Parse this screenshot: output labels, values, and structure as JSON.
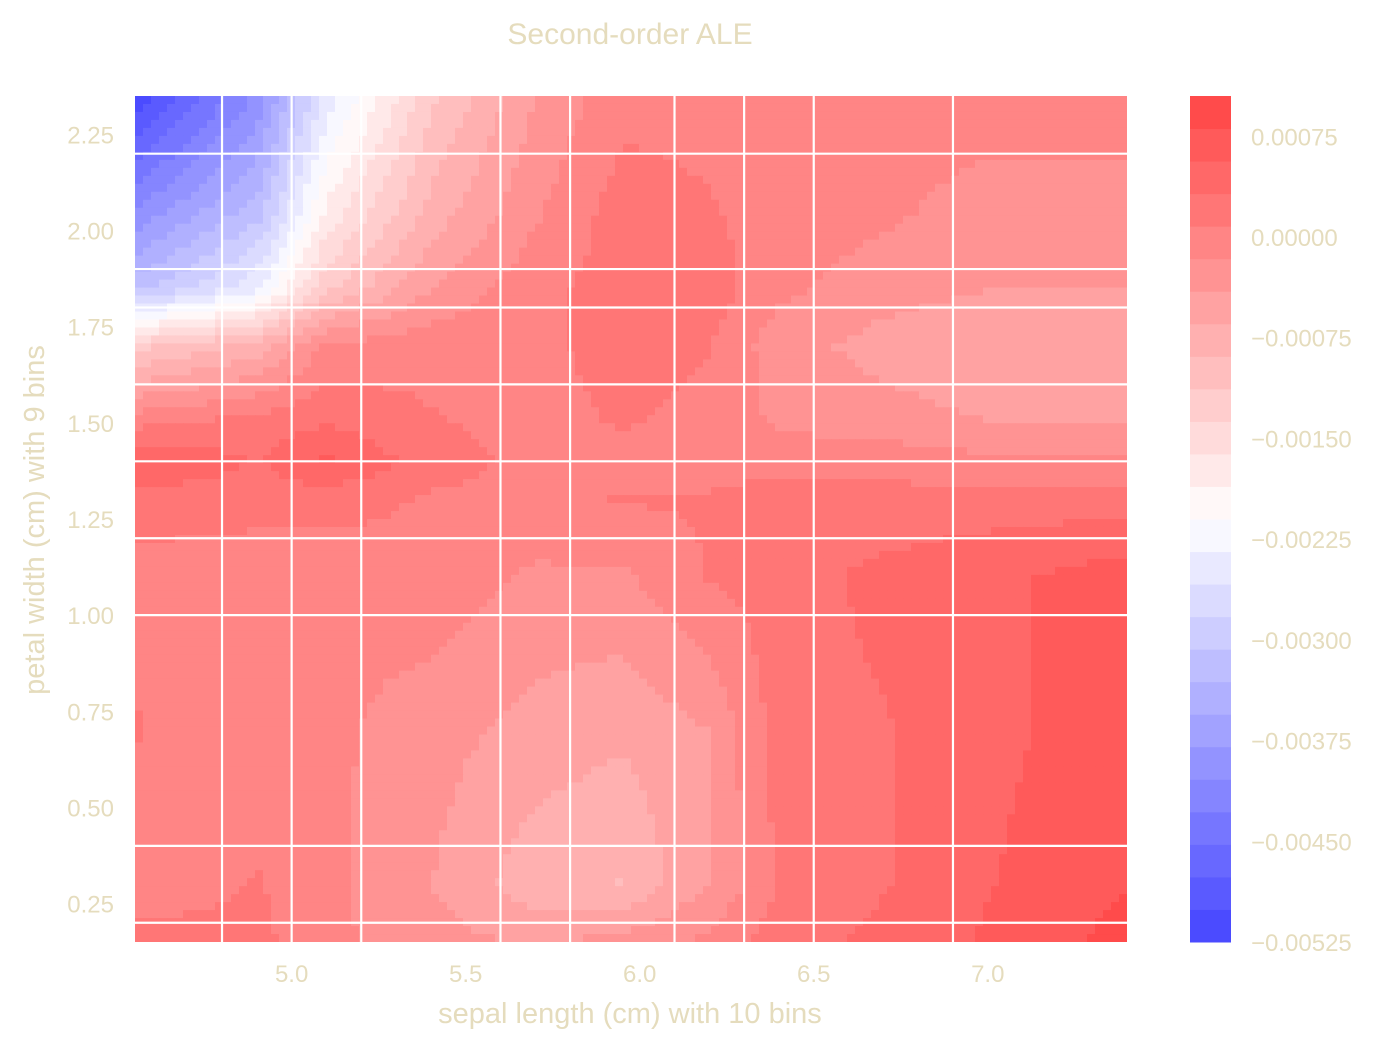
{
  "chart_data": {
    "type": "heatmap",
    "title": "Second-order ALE",
    "xlabel": "sepal length (cm) with 10 bins",
    "ylabel": "petal width (cm) with 9 bins",
    "xlim": [
      4.55,
      7.4
    ],
    "ylim": [
      0.15,
      2.35
    ],
    "x_ticks": [
      5.0,
      5.5,
      6.0,
      6.5,
      7.0
    ],
    "x_tick_labels": [
      "5.0",
      "5.5",
      "6.0",
      "6.5",
      "7.0"
    ],
    "y_ticks": [
      0.25,
      0.5,
      0.75,
      1.0,
      1.25,
      1.5,
      1.75,
      2.0,
      2.25
    ],
    "y_tick_labels": [
      "0.25",
      "0.50",
      "0.75",
      "1.00",
      "1.25",
      "1.50",
      "1.75",
      "2.00",
      "2.25"
    ],
    "x_bin_edges": [
      4.8,
      5.0,
      5.2,
      5.6,
      5.8,
      6.1,
      6.3,
      6.5,
      6.9
    ],
    "y_bin_edges": [
      0.2,
      0.4,
      1.0,
      1.2,
      1.4,
      1.6,
      1.8,
      1.9,
      2.2
    ],
    "x": [
      4.55,
      4.9,
      5.1,
      5.4,
      5.7,
      5.95,
      6.2,
      6.4,
      6.7,
      7.0,
      7.4
    ],
    "y": [
      0.15,
      0.3,
      0.7,
      1.1,
      1.3,
      1.4,
      1.5,
      1.7,
      1.85,
      2.05,
      2.35
    ],
    "z": [
      [
        0.0002,
        0.00015,
        -0.0001,
        -0.0003,
        -0.00045,
        -0.0003,
        -0.0001,
        0.0002,
        0.0004,
        0.0006,
        0.0009
      ],
      [
        -0.0001,
        0.0001,
        -0.0001,
        -0.0004,
        -0.0008,
        -0.0009,
        -0.0004,
        0.0001,
        0.0003,
        0.00055,
        0.0008
      ],
      [
        0.0001,
        -0.0001,
        -0.0001,
        -0.0003,
        -0.0005,
        -0.0006,
        -0.0004,
        0.0002,
        0.0003,
        0.0005,
        0.0007
      ],
      [
        0.0,
        -0.0001,
        -0.0001,
        0.0,
        -0.0002,
        -0.0002,
        0.0001,
        0.0002,
        0.0004,
        0.0005,
        0.0007
      ],
      [
        0.0002,
        0.0002,
        0.0002,
        5e-05,
        0.0,
        0.0001,
        0.0001,
        0.0002,
        0.00015,
        0.0002,
        0.0002
      ],
      [
        0.0006,
        0.0003,
        0.0006,
        0.0002,
        0.0,
        0.0,
        0.0,
        0.0,
        0.0,
        -0.0001,
        -0.0001
      ],
      [
        0.0,
        0.0002,
        0.0003,
        0.0001,
        0.0,
        0.0001,
        0.0,
        -0.0002,
        -0.0003,
        -0.0004,
        -0.0004
      ],
      [
        -0.0012,
        -0.0008,
        -0.0001,
        0.0,
        0.0,
        0.0002,
        0.0001,
        -0.0003,
        -0.0005,
        -0.0006,
        -0.0006
      ],
      [
        -0.0032,
        -0.0024,
        -0.0012,
        -0.0004,
        0.0,
        0.0002,
        0.0002,
        -0.0001,
        -0.0003,
        -0.0004,
        -0.0004
      ],
      [
        -0.004,
        -0.0032,
        -0.0018,
        -0.0008,
        -0.0002,
        0.0002,
        0.0001,
        0.0,
        -0.0001,
        -0.0003,
        -0.0003
      ],
      [
        -0.0052,
        -0.004,
        -0.0025,
        -0.0012,
        -0.0004,
        0.0,
        0.0,
        0.0,
        0.0,
        0.0,
        0.0
      ]
    ],
    "colorbar": {
      "min": -0.00525,
      "max": 0.00105,
      "levels": 26,
      "ticks": [
        0.00075,
        0.0,
        -0.00075,
        -0.0015,
        -0.00225,
        -0.003,
        -0.00375,
        -0.0045,
        -0.00525
      ],
      "tick_labels": [
        "0.00075",
        "0.00000",
        "−0.00075",
        "−0.00150",
        "−0.00225",
        "−0.00300",
        "−0.00375",
        "−0.00450",
        "−0.00525"
      ]
    },
    "colormap": "bwr",
    "grid": true,
    "colors": {
      "label_text": "#e5dcbd",
      "grid_line": "#ffffff"
    }
  }
}
